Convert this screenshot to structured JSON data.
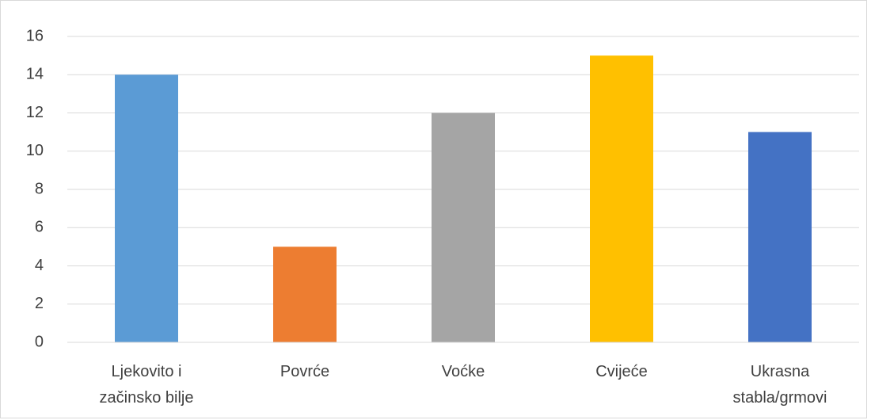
{
  "chart_data": {
    "type": "bar",
    "categories": [
      "Ljekovito i začinsko bilje",
      "Povrće",
      "Voćke",
      "Cvijeće",
      "Ukrasna stabla/grmovi"
    ],
    "values": [
      14,
      5,
      12,
      15,
      11
    ],
    "colors": [
      "#5b9bd5",
      "#ed7d31",
      "#a5a5a5",
      "#ffc000",
      "#4472c4"
    ],
    "ylim": [
      0,
      16
    ],
    "yticks": [
      0,
      2,
      4,
      6,
      8,
      10,
      12,
      14,
      16
    ],
    "grid": true
  }
}
